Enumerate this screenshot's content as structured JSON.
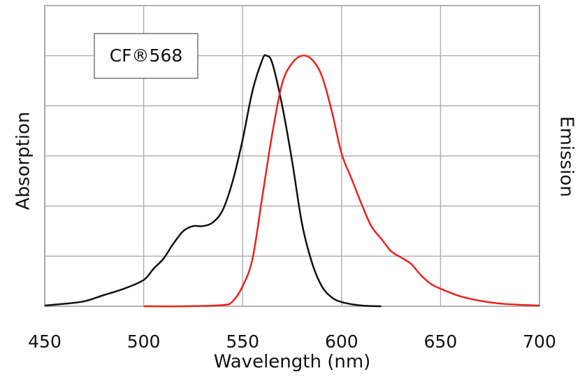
{
  "chart_data": {
    "type": "line",
    "annotation": "CF®568",
    "x_label": "Wavelength (nm)",
    "y_label": "Absorption",
    "y2_label": "Emission",
    "xlim": [
      450,
      700
    ],
    "xticks": [
      450,
      500,
      550,
      600,
      650,
      700
    ],
    "ylim": [
      0,
      1.2
    ],
    "ygrid": [
      0.2,
      0.4,
      0.6,
      0.8,
      1.0
    ],
    "grid": true,
    "series": [
      {
        "name": "Absorption",
        "color": "#111111",
        "x": [
          450,
          460,
          470,
          480,
          490,
          500,
          505,
          510,
          515,
          520,
          525,
          530,
          535,
          540,
          545,
          550,
          555,
          560,
          562,
          565,
          570,
          575,
          580,
          585,
          590,
          595,
          600,
          610,
          620
        ],
        "values": [
          0.003,
          0.01,
          0.02,
          0.045,
          0.07,
          0.105,
          0.15,
          0.19,
          0.25,
          0.3,
          0.32,
          0.32,
          0.335,
          0.385,
          0.5,
          0.665,
          0.86,
          0.985,
          1.0,
          0.97,
          0.8,
          0.58,
          0.33,
          0.175,
          0.08,
          0.036,
          0.017,
          0.003,
          0
        ]
      },
      {
        "name": "Emission",
        "color": "#e8231e",
        "x": [
          500,
          520,
          540,
          545,
          550,
          555,
          560,
          565,
          570,
          575,
          580,
          585,
          590,
          595,
          600,
          605,
          610,
          615,
          620,
          625,
          630,
          635,
          640,
          645,
          650,
          660,
          670,
          680,
          690,
          700
        ],
        "values": [
          0,
          0,
          0.005,
          0.02,
          0.08,
          0.19,
          0.44,
          0.69,
          0.89,
          0.97,
          1.0,
          0.985,
          0.92,
          0.78,
          0.61,
          0.51,
          0.41,
          0.32,
          0.27,
          0.22,
          0.195,
          0.17,
          0.125,
          0.09,
          0.07,
          0.04,
          0.022,
          0.011,
          0.006,
          0.003
        ]
      }
    ]
  }
}
